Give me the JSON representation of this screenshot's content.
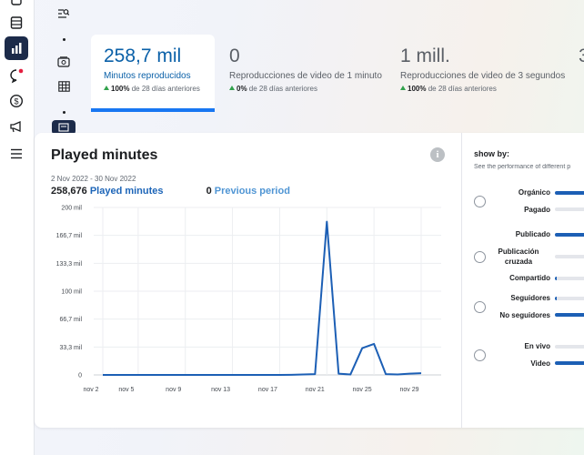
{
  "colors": {
    "accent": "#1877f2",
    "line": "#1c5fb5",
    "positive": "#31a24c"
  },
  "rail": {
    "items": [
      {
        "name": "home-icon"
      },
      {
        "name": "content-icon"
      },
      {
        "name": "insights-icon",
        "active": true
      },
      {
        "name": "inbox-icon",
        "badge": true
      },
      {
        "name": "monetization-icon"
      },
      {
        "name": "ads-icon"
      },
      {
        "name": "menu-icon"
      }
    ]
  },
  "stats": [
    {
      "value": "258,7 mil",
      "label": "Minutos reproducidos",
      "change": "100%",
      "change_suffix": " de 28 días anteriores"
    },
    {
      "value": "0",
      "label": "Reproducciones de video de 1 minuto",
      "change": "0%",
      "change_suffix": " de 28 días anteriores"
    },
    {
      "value": "1 mill.",
      "label": "Reproducciones de video de 3 segundos",
      "change": "100%",
      "change_suffix": " de 28 días anteriores"
    },
    {
      "value": "3",
      "label": "",
      "change": "",
      "change_suffix": ""
    }
  ],
  "panel": {
    "title": "Played minutes",
    "info_glyph": "i",
    "date_range": "2 Nov 2022 - 30 Nov 2022",
    "total_value": "258,676",
    "total_label": "Played minutes",
    "previous_value": "0",
    "previous_label": "Previous period"
  },
  "chart_data": {
    "type": "line",
    "x": [
      "nov 2",
      "nov 3",
      "nov 4",
      "nov 5",
      "nov 6",
      "nov 7",
      "nov 8",
      "nov 9",
      "nov 10",
      "nov 11",
      "nov 12",
      "nov 13",
      "nov 14",
      "nov 15",
      "nov 16",
      "nov 17",
      "nov 18",
      "nov 19",
      "nov 20",
      "nov 21",
      "nov 22",
      "nov 23",
      "nov 24",
      "nov 25",
      "nov 26",
      "nov 27",
      "nov 28",
      "nov 29"
    ],
    "x_ticks": [
      "nov 2",
      "nov 5",
      "nov 9",
      "nov 13",
      "nov 17",
      "nov 21",
      "nov 25",
      "nov 29"
    ],
    "y_ticks": [
      "0",
      "33,3 mil",
      "66,7 mil",
      "100 mil",
      "133,3 mil",
      "166,7 mil",
      "200 mil"
    ],
    "ylim": [
      0,
      200000
    ],
    "series": [
      {
        "values": [
          0,
          0,
          0,
          0,
          0,
          0,
          0,
          0,
          0,
          0,
          0,
          0,
          0,
          0,
          0,
          0,
          200,
          500,
          1000,
          183000,
          1500,
          500,
          32000,
          37000,
          1000,
          500,
          1500,
          2000
        ]
      }
    ],
    "grid": true
  },
  "show_by": {
    "title": "show by:",
    "subtitle": "See the performance of different p",
    "groups": [
      {
        "options": [
          {
            "label": "Orgánico",
            "fill": 1.0
          },
          {
            "label": "Pagado",
            "fill": 0.0
          }
        ]
      },
      {
        "options": [
          {
            "label": "Publicado",
            "fill": 1.0
          },
          {
            "label": "Publicación cruzada",
            "fill": 0.0
          },
          {
            "label": "Compartido",
            "fill": 0.05
          }
        ]
      },
      {
        "options": [
          {
            "label": "Seguidores",
            "fill": 0.05
          },
          {
            "label": "No seguidores",
            "fill": 1.0
          }
        ]
      },
      {
        "options": [
          {
            "label": "En vivo",
            "fill": 0.0
          },
          {
            "label": "Video",
            "fill": 1.0
          }
        ]
      }
    ]
  }
}
